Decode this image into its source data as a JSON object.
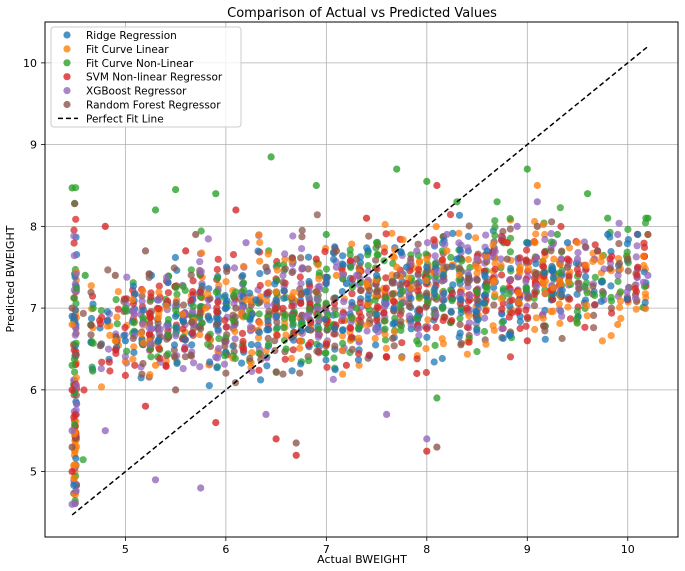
{
  "chart_data": {
    "type": "scatter",
    "title": "Comparison of Actual vs Predicted Values",
    "xlabel": "Actual BWEIGHT",
    "ylabel": "Predicted BWEIGHT",
    "xlim": [
      4.2,
      10.5
    ],
    "ylim": [
      4.2,
      10.5
    ],
    "xticks": [
      5,
      6,
      7,
      8,
      9,
      10
    ],
    "yticks": [
      5,
      6,
      7,
      8,
      9,
      10
    ],
    "grid": true,
    "legend_position": "top-left",
    "perfect_fit": {
      "name": "Perfect Fit Line",
      "x": [
        4.47,
        10.2
      ],
      "y": [
        4.47,
        10.2
      ],
      "style": "dashed",
      "color": "#000000"
    },
    "series": [
      {
        "name": "Ridge Regression",
        "color": "#1f77b4",
        "points": [
          [
            4.47,
            6.9
          ],
          [
            5.0,
            6.6
          ],
          [
            5.5,
            6.9
          ],
          [
            6.0,
            7.0
          ],
          [
            6.3,
            7.1
          ],
          [
            6.5,
            7.1
          ],
          [
            6.8,
            7.2
          ],
          [
            7.0,
            7.3
          ],
          [
            7.2,
            7.3
          ],
          [
            7.5,
            7.4
          ],
          [
            7.8,
            7.5
          ],
          [
            8.0,
            7.5
          ],
          [
            8.3,
            7.6
          ],
          [
            8.6,
            7.7
          ],
          [
            9.0,
            7.8
          ],
          [
            9.4,
            7.8
          ],
          [
            9.8,
            7.9
          ],
          [
            10.1,
            7.9
          ]
        ]
      },
      {
        "name": "Fit Curve Linear",
        "color": "#ff7f0e",
        "points": [
          [
            4.47,
            6.8
          ],
          [
            4.9,
            6.6
          ],
          [
            5.3,
            6.3
          ],
          [
            5.8,
            7.0
          ],
          [
            6.2,
            7.1
          ],
          [
            6.5,
            7.2
          ],
          [
            6.9,
            7.2
          ],
          [
            7.1,
            7.4
          ],
          [
            7.4,
            7.3
          ],
          [
            7.7,
            7.5
          ],
          [
            8.0,
            7.6
          ],
          [
            8.2,
            7.7
          ],
          [
            8.5,
            7.6
          ],
          [
            8.8,
            7.8
          ],
          [
            9.1,
            8.5
          ],
          [
            9.5,
            7.8
          ],
          [
            9.9,
            6.8
          ],
          [
            10.2,
            7.9
          ]
        ]
      },
      {
        "name": "Fit Curve Non-Linear",
        "color": "#2ca02c",
        "points": [
          [
            4.47,
            8.47
          ],
          [
            4.47,
            6.3
          ],
          [
            4.6,
            7.4
          ],
          [
            5.0,
            7.0
          ],
          [
            5.3,
            8.2
          ],
          [
            5.5,
            8.45
          ],
          [
            5.9,
            8.4
          ],
          [
            6.2,
            6.9
          ],
          [
            6.45,
            8.85
          ],
          [
            6.6,
            6.5
          ],
          [
            6.9,
            8.5
          ],
          [
            7.0,
            7.9
          ],
          [
            7.3,
            7.0
          ],
          [
            7.5,
            7.8
          ],
          [
            7.7,
            8.7
          ],
          [
            7.9,
            6.6
          ],
          [
            8.0,
            8.55
          ],
          [
            8.3,
            8.3
          ],
          [
            8.5,
            7.2
          ],
          [
            8.7,
            8.3
          ],
          [
            9.0,
            8.7
          ],
          [
            9.3,
            7.9
          ],
          [
            9.6,
            8.4
          ],
          [
            9.8,
            8.1
          ],
          [
            10.2,
            8.1
          ],
          [
            8.1,
            5.9
          ]
        ]
      },
      {
        "name": "SVM Non-linear Regressor",
        "color": "#d62728",
        "points": [
          [
            4.47,
            5.0
          ],
          [
            4.47,
            6.0
          ],
          [
            4.8,
            8.0
          ],
          [
            5.2,
            5.8
          ],
          [
            5.6,
            7.7
          ],
          [
            5.9,
            5.6
          ],
          [
            6.1,
            8.2
          ],
          [
            6.5,
            5.4
          ],
          [
            6.7,
            5.2
          ],
          [
            6.9,
            7.6
          ],
          [
            7.2,
            6.3
          ],
          [
            7.4,
            8.1
          ],
          [
            7.6,
            6.4
          ],
          [
            7.8,
            7.3
          ],
          [
            8.0,
            5.25
          ],
          [
            8.1,
            8.5
          ],
          [
            8.4,
            7.0
          ],
          [
            8.8,
            7.8
          ],
          [
            9.0,
            6.6
          ],
          [
            9.4,
            7.6
          ],
          [
            9.7,
            7.7
          ],
          [
            10.1,
            7.5
          ],
          [
            7.9,
            6.2
          ]
        ]
      },
      {
        "name": "XGBoost Regressor",
        "color": "#9467bd",
        "points": [
          [
            4.47,
            4.6
          ],
          [
            4.47,
            5.5
          ],
          [
            4.8,
            5.5
          ],
          [
            5.3,
            4.9
          ],
          [
            5.75,
            4.8
          ],
          [
            5.9,
            6.4
          ],
          [
            6.2,
            7.8
          ],
          [
            6.4,
            5.7
          ],
          [
            6.8,
            6.9
          ],
          [
            7.1,
            7.5
          ],
          [
            7.3,
            7.4
          ],
          [
            7.6,
            5.7
          ],
          [
            7.9,
            7.7
          ],
          [
            8.0,
            5.4
          ],
          [
            8.2,
            7.9
          ],
          [
            8.5,
            7.6
          ],
          [
            8.9,
            8.0
          ],
          [
            9.1,
            8.3
          ],
          [
            9.5,
            7.6
          ],
          [
            9.9,
            7.9
          ],
          [
            10.2,
            7.4
          ]
        ]
      },
      {
        "name": "Random Forest Regressor",
        "color": "#8c564b",
        "points": [
          [
            4.47,
            5.3
          ],
          [
            4.47,
            7.0
          ],
          [
            4.9,
            7.4
          ],
          [
            5.2,
            7.7
          ],
          [
            5.5,
            6.0
          ],
          [
            5.7,
            7.9
          ],
          [
            6.1,
            7.0
          ],
          [
            6.4,
            7.5
          ],
          [
            6.7,
            5.35
          ],
          [
            6.9,
            7.2
          ],
          [
            7.1,
            7.7
          ],
          [
            7.3,
            7.6
          ],
          [
            7.5,
            7.2
          ],
          [
            7.7,
            7.4
          ],
          [
            7.9,
            7.3
          ],
          [
            8.1,
            5.3
          ],
          [
            8.2,
            7.5
          ],
          [
            8.5,
            7.1
          ],
          [
            8.8,
            7.6
          ],
          [
            9.1,
            8.0
          ],
          [
            9.4,
            7.5
          ],
          [
            9.7,
            7.7
          ],
          [
            10.0,
            7.6
          ],
          [
            10.2,
            7.9
          ]
        ]
      }
    ]
  }
}
